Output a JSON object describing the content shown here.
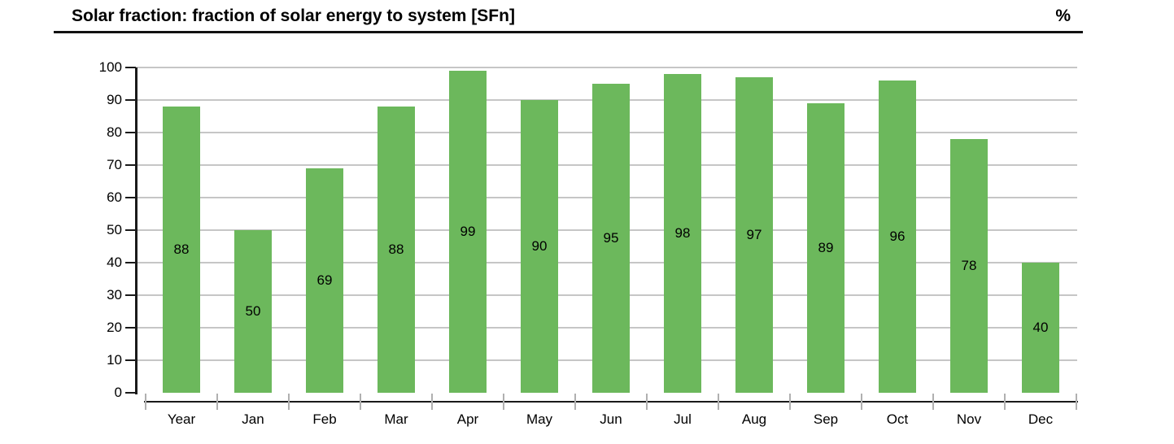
{
  "header": {
    "title": "Solar fraction: fraction of solar energy to system [SFn]",
    "unit": "%"
  },
  "chart_data": {
    "type": "bar",
    "title": "Solar fraction: fraction of solar energy to system [SFn]",
    "unit_label": "%",
    "categories": [
      "Year",
      "Jan",
      "Feb",
      "Mar",
      "Apr",
      "May",
      "Jun",
      "Jul",
      "Aug",
      "Sep",
      "Oct",
      "Nov",
      "Dec"
    ],
    "values": [
      88,
      50,
      69,
      88,
      99,
      90,
      95,
      98,
      97,
      89,
      96,
      78,
      40
    ],
    "value_labels_shown": true,
    "value_label_position": "inside-center",
    "ylim": [
      0,
      100
    ],
    "yticks": [
      0,
      10,
      20,
      30,
      40,
      50,
      60,
      70,
      80,
      90,
      100
    ],
    "xlabel": "",
    "ylabel": "",
    "grid": "horizontal",
    "legend": "none"
  },
  "colors": {
    "bar": "#6CB85C",
    "gridline": "#C6C6C6",
    "axis": "#1A1A1A",
    "x_tick": "#B0B0B0",
    "text": "#000000",
    "background": "#FFFFFF"
  }
}
